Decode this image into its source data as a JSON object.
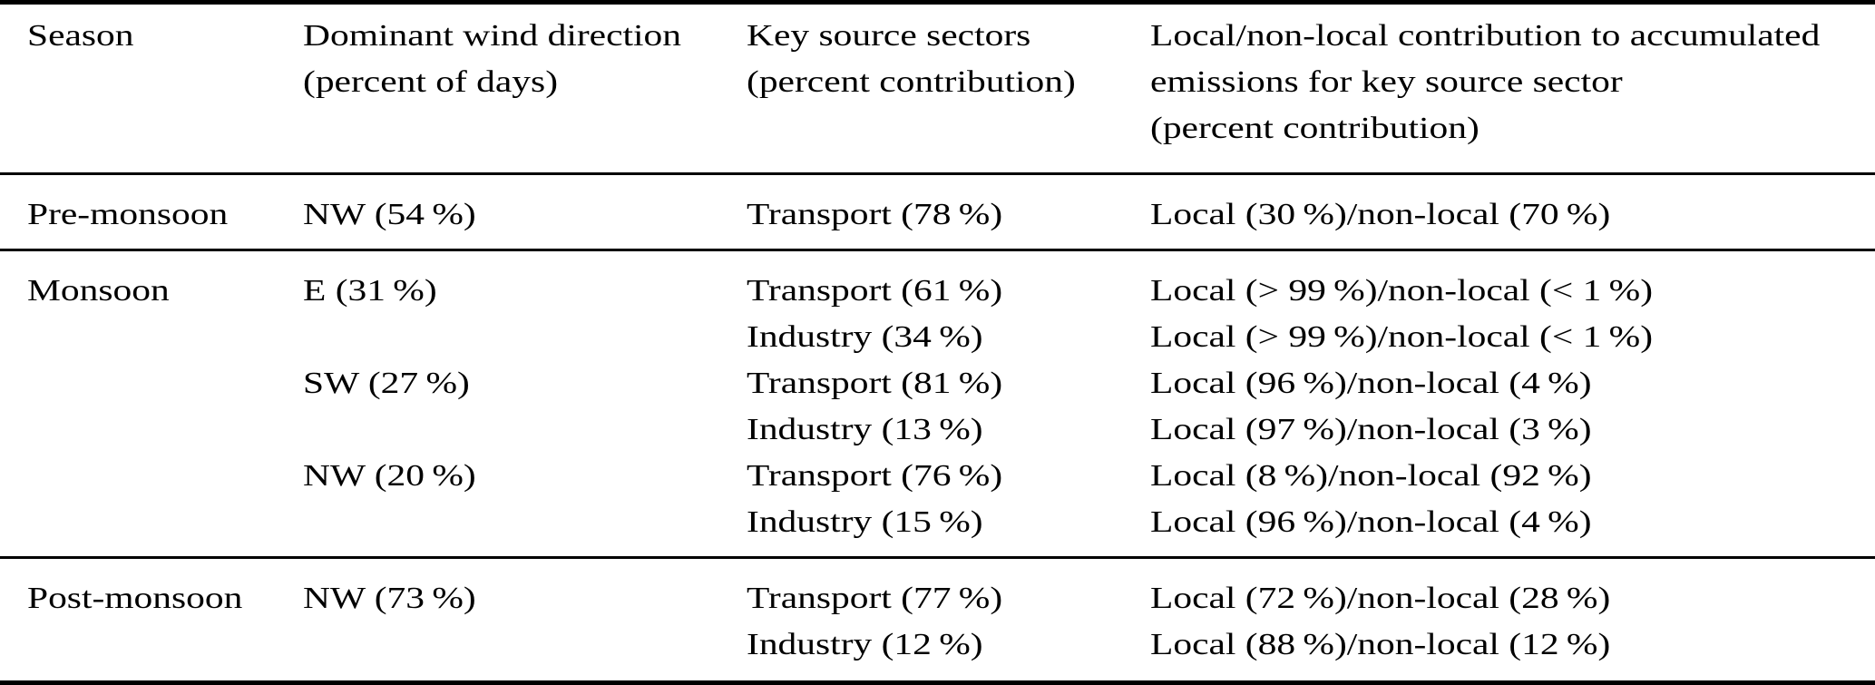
{
  "colors": {
    "background": "#ffffff",
    "text": "#000000",
    "rule": "#000000"
  },
  "table": {
    "headers": {
      "season": "Season",
      "wind": "Dominant wind direction\n(percent of days)",
      "sectors": "Key source sectors\n(percent contribution)",
      "local": "Local/non-local contribution to accumulated\nemissions for key source sector\n(percent contribution)"
    },
    "groups": [
      {
        "season": "Pre-monsoon",
        "rows": [
          {
            "wind": "NW (54 %)",
            "sector": "Transport (78 %)",
            "local": "Local (30 %)/non-local (70 %)"
          }
        ]
      },
      {
        "season": "Monsoon",
        "rows": [
          {
            "wind": "E (31 %)",
            "sector": "Transport (61 %)",
            "local": "Local (> 99 %)/non-local (< 1 %)"
          },
          {
            "wind": "",
            "sector": "Industry (34 %)",
            "local": "Local (> 99 %)/non-local (< 1 %)"
          },
          {
            "wind": "SW (27 %)",
            "sector": "Transport (81 %)",
            "local": "Local (96 %)/non-local (4 %)"
          },
          {
            "wind": "",
            "sector": "Industry (13 %)",
            "local": "Local (97 %)/non-local (3 %)"
          },
          {
            "wind": "NW (20 %)",
            "sector": "Transport (76 %)",
            "local": "Local (8 %)/non-local (92 %)"
          },
          {
            "wind": "",
            "sector": "Industry (15 %)",
            "local": "Local (96 %)/non-local (4 %)"
          }
        ]
      },
      {
        "season": "Post-monsoon",
        "rows": [
          {
            "wind": "NW (73 %)",
            "sector": "Transport (77 %)",
            "local": "Local (72 %)/non-local (28 %)"
          },
          {
            "wind": "",
            "sector": "Industry (12 %)",
            "local": "Local (88 %)/non-local (12 %)"
          }
        ]
      }
    ]
  }
}
